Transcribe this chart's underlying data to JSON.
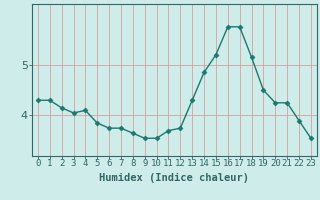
{
  "x": [
    0,
    1,
    2,
    3,
    4,
    5,
    6,
    7,
    8,
    9,
    10,
    11,
    12,
    13,
    14,
    15,
    16,
    17,
    18,
    19,
    20,
    21,
    22,
    23
  ],
  "y": [
    4.3,
    4.3,
    4.15,
    4.05,
    4.1,
    3.85,
    3.75,
    3.75,
    3.65,
    3.55,
    3.55,
    3.7,
    3.75,
    4.3,
    4.85,
    5.2,
    5.75,
    5.75,
    5.15,
    4.5,
    4.25,
    4.25,
    3.9,
    3.55
  ],
  "line_color": "#1a7a6e",
  "marker": "D",
  "marker_size": 2.5,
  "bg_color": "#ceecea",
  "axis_line_color": "#336666",
  "xlabel": "Humidex (Indice chaleur)",
  "xlabel_fontsize": 7.5,
  "tick_fontsize": 6.5,
  "ytick_fontsize": 8,
  "yticks": [
    4,
    5
  ],
  "ylim": [
    3.2,
    6.2
  ],
  "xlim": [
    -0.5,
    23.5
  ],
  "red_grid_color": "#d4a0a0",
  "horiz_grid_color": "#d4a0a0"
}
